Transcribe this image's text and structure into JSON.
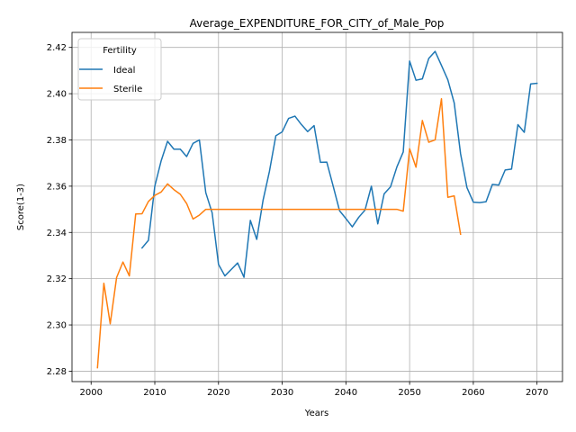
{
  "chart_data": {
    "type": "line",
    "title": "Average_EXPENDITURE_FOR_CITY_of_Male_Pop",
    "xlabel": "Years",
    "ylabel": "Score(1-3)",
    "xlim": [
      1997,
      2074
    ],
    "ylim": [
      2.2755,
      2.4265
    ],
    "xticks": [
      2000,
      2010,
      2020,
      2030,
      2040,
      2050,
      2060,
      2070
    ],
    "xtick_labels": [
      "2000",
      "2010",
      "2020",
      "2030",
      "2040",
      "2050",
      "2060",
      "2070"
    ],
    "yticks": [
      2.28,
      2.3,
      2.32,
      2.34,
      2.36,
      2.38,
      2.4,
      2.42
    ],
    "ytick_labels": [
      "2.28",
      "2.30",
      "2.32",
      "2.34",
      "2.36",
      "2.38",
      "2.40",
      "2.42"
    ],
    "grid": true,
    "legend": {
      "title": "Fertility",
      "position": "top-left"
    },
    "series": [
      {
        "name": "Ideal",
        "color": "#1f77b4",
        "x": [
          2008,
          2009,
          2010,
          2011,
          2012,
          2013,
          2014,
          2015,
          2016,
          2017,
          2018,
          2019,
          2020,
          2021,
          2022,
          2023,
          2024,
          2025,
          2026,
          2027,
          2028,
          2029,
          2030,
          2031,
          2032,
          2033,
          2034,
          2035,
          2036,
          2037,
          2038,
          2039,
          2040,
          2041,
          2042,
          2043,
          2044,
          2045,
          2046,
          2047,
          2048,
          2049,
          2050,
          2051,
          2052,
          2053,
          2054,
          2055,
          2056,
          2057,
          2058,
          2059,
          2060,
          2061,
          2062,
          2063,
          2064,
          2065,
          2066,
          2067,
          2068,
          2069,
          2070
        ],
        "y": [
          2.3333,
          2.3366,
          2.36,
          2.371,
          2.3794,
          2.376,
          2.376,
          2.3728,
          2.3785,
          2.38,
          2.3572,
          2.3485,
          2.3262,
          2.3212,
          2.324,
          2.3268,
          2.3206,
          2.3452,
          2.337,
          2.354,
          2.3665,
          2.3818,
          2.3835,
          2.3893,
          2.3903,
          2.3867,
          2.3836,
          2.3862,
          2.3703,
          2.3704,
          2.36,
          2.3494,
          2.346,
          2.3424,
          2.3465,
          2.3497,
          2.36,
          2.3437,
          2.3567,
          2.3597,
          2.3683,
          2.3748,
          2.4141,
          2.4058,
          2.4064,
          2.4152,
          2.4183,
          2.4122,
          2.406,
          2.396,
          2.374,
          2.3594,
          2.3531,
          2.3529,
          2.3533,
          2.3608,
          2.3605,
          2.367,
          2.3674,
          2.3866,
          2.3833,
          2.4042,
          2.4045
        ]
      },
      {
        "name": "Sterile",
        "color": "#ff7f0e",
        "x": [
          2001,
          2002,
          2003,
          2004,
          2005,
          2006,
          2007,
          2008,
          2009,
          2010,
          2011,
          2012,
          2013,
          2014,
          2015,
          2016,
          2017,
          2018,
          2019,
          2020,
          2021,
          2022,
          2023,
          2024,
          2025,
          2026,
          2027,
          2028,
          2029,
          2030,
          2031,
          2032,
          2033,
          2034,
          2035,
          2036,
          2037,
          2038,
          2039,
          2040,
          2041,
          2042,
          2043,
          2044,
          2045,
          2046,
          2047,
          2048,
          2049,
          2050,
          2051,
          2052,
          2053,
          2054,
          2055,
          2056,
          2057,
          2058
        ],
        "y": [
          2.2815,
          2.318,
          2.3005,
          2.3205,
          2.3272,
          2.3212,
          2.348,
          2.3481,
          2.3534,
          2.356,
          2.3575,
          2.361,
          2.3585,
          2.3565,
          2.3525,
          2.3458,
          2.3475,
          2.35,
          2.35,
          2.35,
          2.35,
          2.35,
          2.35,
          2.35,
          2.35,
          2.35,
          2.35,
          2.35,
          2.35,
          2.35,
          2.35,
          2.35,
          2.35,
          2.35,
          2.35,
          2.35,
          2.35,
          2.35,
          2.35,
          2.35,
          2.35,
          2.35,
          2.35,
          2.35,
          2.35,
          2.35,
          2.35,
          2.35,
          2.3492,
          2.3762,
          2.3682,
          2.3884,
          2.379,
          2.38,
          2.3978,
          2.3552,
          2.3558,
          2.3392
        ]
      }
    ]
  }
}
